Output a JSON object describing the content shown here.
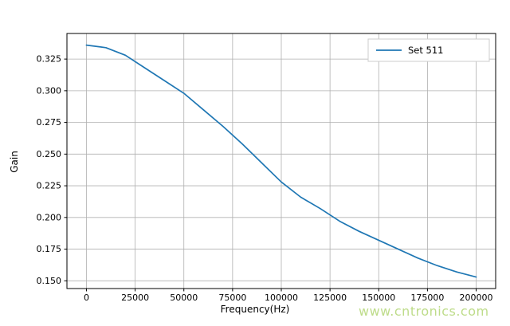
{
  "figure": {
    "watermark": "www.cntronics.com"
  },
  "chart_data": {
    "type": "line",
    "title": "",
    "xlabel": "Frequency(Hz)",
    "ylabel": "Gain",
    "grid": true,
    "legend_position": "upper right",
    "xlim": [
      -10000,
      210000
    ],
    "ylim": [
      0.1439,
      0.3452
    ],
    "xticks": [
      0,
      25000,
      50000,
      75000,
      100000,
      125000,
      150000,
      175000,
      200000
    ],
    "xtick_labels": [
      "0",
      "25000",
      "50000",
      "75000",
      "100000",
      "125000",
      "150000",
      "175000",
      "200000"
    ],
    "yticks": [
      0.15,
      0.175,
      0.2,
      0.225,
      0.25,
      0.275,
      0.3,
      0.325
    ],
    "ytick_labels": [
      "0.150",
      "0.175",
      "0.200",
      "0.225",
      "0.250",
      "0.275",
      "0.300",
      "0.325"
    ],
    "x": [
      0,
      10000,
      20000,
      30000,
      40000,
      50000,
      60000,
      70000,
      80000,
      90000,
      100000,
      110000,
      120000,
      130000,
      140000,
      150000,
      160000,
      170000,
      180000,
      190000,
      200000
    ],
    "series": [
      {
        "name": "Set 511",
        "color": "#1f77b4",
        "values": [
          0.336,
          0.334,
          0.328,
          0.318,
          0.308,
          0.298,
          0.285,
          0.272,
          0.258,
          0.243,
          0.228,
          0.216,
          0.207,
          0.197,
          0.189,
          0.182,
          0.175,
          0.168,
          0.162,
          0.157,
          0.153
        ]
      }
    ],
    "colors": {
      "line": "#1f77b4",
      "grid": "#b0b0b0",
      "spine": "#000000",
      "tick_text": "#000000",
      "legend_border": "#cccccc",
      "legend_bg": "#ffffff"
    }
  }
}
